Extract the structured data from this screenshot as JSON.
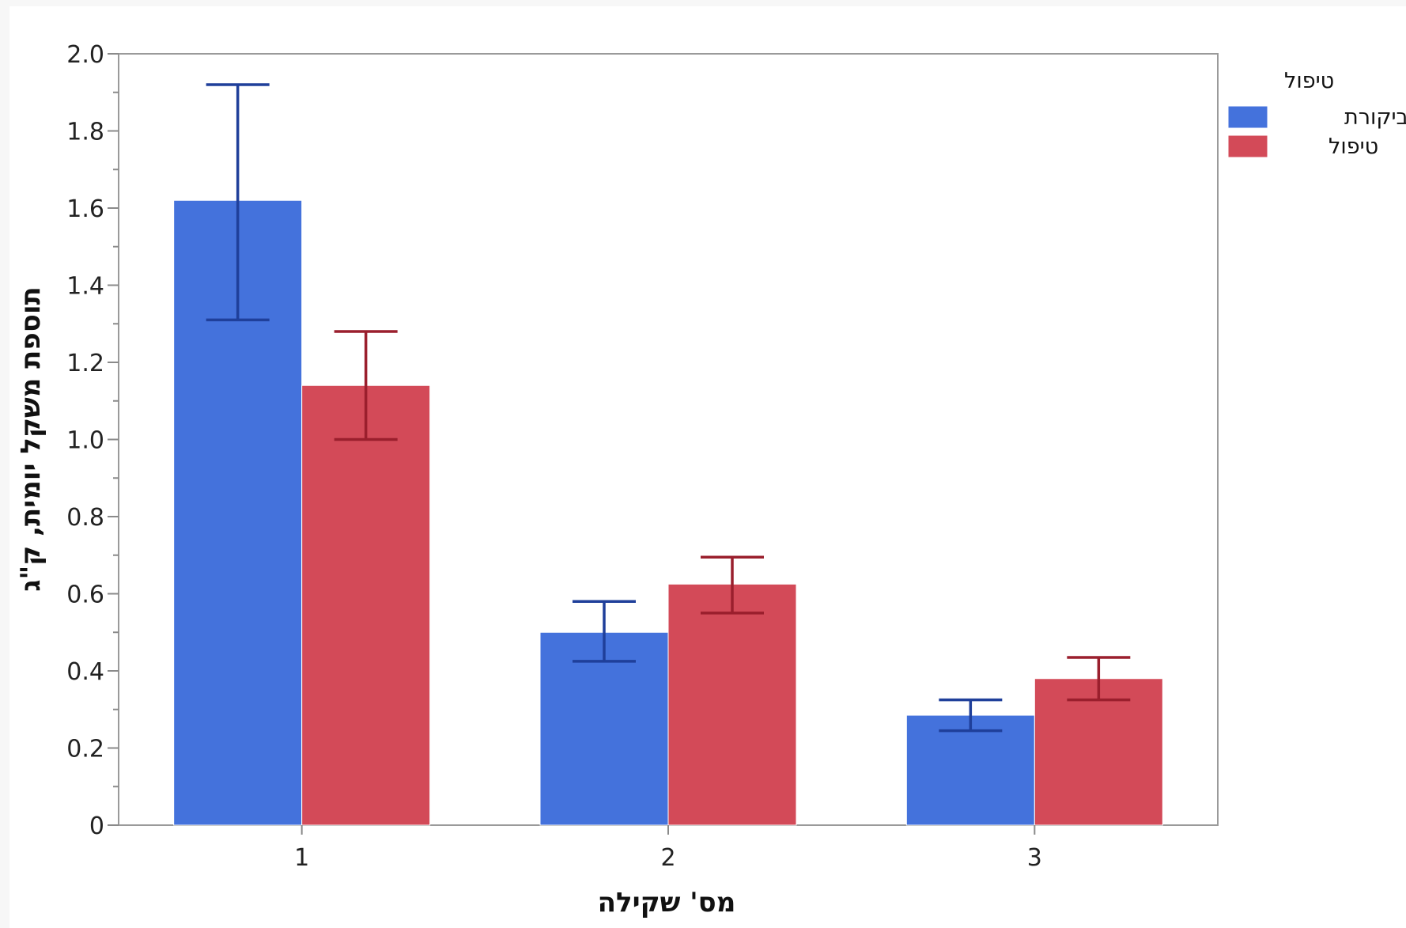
{
  "chart_data": {
    "type": "bar",
    "xlabel": "מס' שקילה",
    "ylabel": "תוספת משקל יומית, ק\"ג",
    "categories": [
      "1",
      "2",
      "3"
    ],
    "ylim": [
      0,
      2.0
    ],
    "yticks": [
      "0",
      "0.2",
      "0.4",
      "0.6",
      "0.8",
      "1.0",
      "1.2",
      "1.4",
      "1.6",
      "1.8",
      "2.0"
    ],
    "grid": false,
    "legend": {
      "title": "טיפול",
      "position": "right"
    },
    "series": [
      {
        "name": "ביקורת",
        "color": "#4472dc",
        "error_color": "#1f3f9a",
        "values": [
          1.62,
          0.5,
          0.285
        ],
        "error_low": [
          1.31,
          0.425,
          0.245
        ],
        "error_high": [
          1.92,
          0.58,
          0.325
        ]
      },
      {
        "name": "טיפול",
        "color": "#d34a58",
        "error_color": "#9a1f2d",
        "values": [
          1.14,
          0.625,
          0.38
        ],
        "error_low": [
          1.0,
          0.55,
          0.325
        ],
        "error_high": [
          1.28,
          0.695,
          0.435
        ]
      }
    ]
  }
}
